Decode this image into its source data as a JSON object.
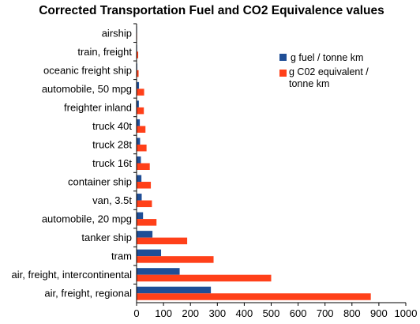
{
  "chart_data": {
    "type": "bar",
    "orientation": "horizontal",
    "title": "Corrected Transportation Fuel and CO2 Equivalence values",
    "xlabel": "",
    "ylabel": "",
    "xlim": [
      0,
      1000
    ],
    "xticks": [
      0,
      100,
      200,
      300,
      400,
      500,
      600,
      700,
      800,
      900,
      1000
    ],
    "grid": false,
    "legend_position": "top-right",
    "categories": [
      "airship",
      "train, freight",
      "oceanic freight ship",
      "automobile, 50 mpg",
      "freighter inland",
      "truck 40t",
      "truck 28t",
      "truck 16t",
      "container ship",
      "van, 3.5t",
      "automobile, 20 mpg",
      "tanker ship",
      "tram",
      "air, freight, intercontinental",
      "air, freight, regional"
    ],
    "series": [
      {
        "name": "g fuel / tonne km",
        "color": "#1f4e96",
        "values": [
          0.5,
          2,
          2.5,
          9,
          8.5,
          12,
          13,
          16,
          18,
          19,
          24,
          59,
          91,
          160,
          276
        ]
      },
      {
        "name": "g C02 equivalent / tonne km",
        "color": "#ff4019",
        "values": [
          1,
          6,
          7.5,
          28,
          27,
          33,
          37,
          49,
          53,
          57,
          74,
          188,
          286,
          500,
          870
        ]
      }
    ]
  }
}
